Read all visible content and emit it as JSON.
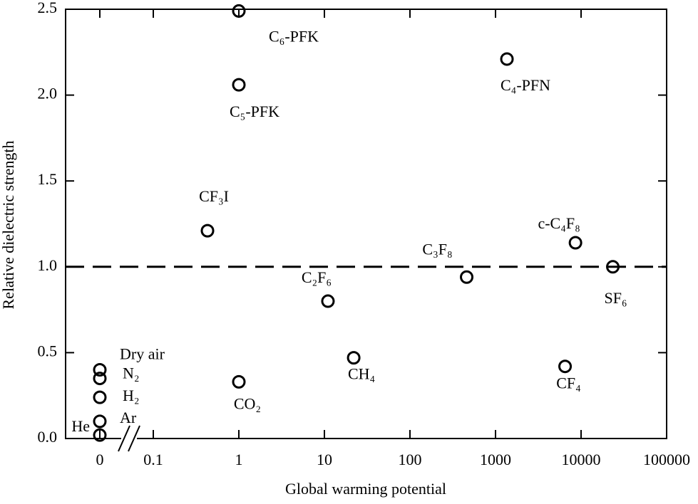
{
  "chart_data": {
    "type": "scatter",
    "xlabel": "Global warming potential",
    "ylabel": "Relative dielectric strength",
    "xscale": "log",
    "axis_break": true,
    "xlim": [
      0.01,
      100000
    ],
    "xticks": [
      0,
      0.1,
      1,
      10,
      100,
      1000,
      10000,
      100000
    ],
    "ylim": [
      0,
      2.5
    ],
    "yticks": [
      {
        "value": 0,
        "label": "0.0"
      },
      {
        "value": 0.5,
        "label": "0.5"
      },
      {
        "value": 1,
        "label": "1.0"
      },
      {
        "value": 1.5,
        "label": "1.5"
      },
      {
        "value": 2,
        "label": "2.0"
      },
      {
        "value": 2.5,
        "label": "2.5"
      }
    ],
    "reference_y": 1,
    "color": "#000000",
    "points": [
      {
        "label": "He",
        "x": 0,
        "y": 0.02
      },
      {
        "label": "Ar",
        "x": 0,
        "y": 0.1
      },
      {
        "label": "H₂",
        "x": 0,
        "y": 0.24
      },
      {
        "label": "N₂",
        "x": 0,
        "y": 0.35
      },
      {
        "label": "Dry air",
        "x": 0,
        "y": 0.4
      },
      {
        "label": "CF₃I",
        "x": 0.43,
        "y": 1.21
      },
      {
        "label": "C₆-PFK",
        "x": 1,
        "y": 2.49
      },
      {
        "label": "C₅-PFK",
        "x": 1,
        "y": 2.06
      },
      {
        "label": "CO₂",
        "x": 1,
        "y": 0.33
      },
      {
        "label": "C₂F₆",
        "x": 11,
        "y": 0.8
      },
      {
        "label": "CH₄",
        "x": 22,
        "y": 0.47
      },
      {
        "label": "C₃F₈",
        "x": 460,
        "y": 0.94
      },
      {
        "label": "C₄-PFN",
        "x": 1360,
        "y": 2.21
      },
      {
        "label": "c-C₄F₈",
        "x": 8600,
        "y": 1.14
      },
      {
        "label": "SF₆",
        "x": 23500,
        "y": 1
      },
      {
        "label": "CF₄",
        "x": 6500,
        "y": 0.42
      }
    ]
  }
}
